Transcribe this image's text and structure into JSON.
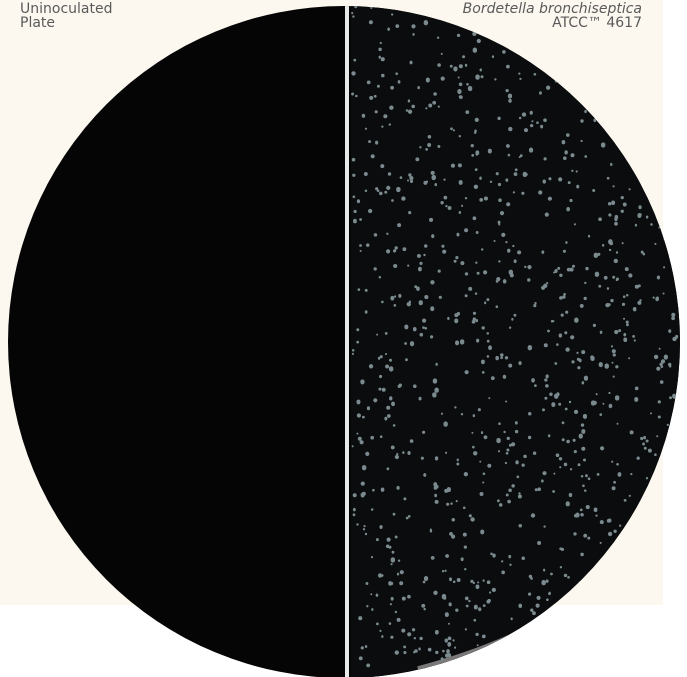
{
  "labels": {
    "left": [
      "Uninoculated",
      "Plate"
    ],
    "right": {
      "organism": "Bordetella bronchiseptica",
      "strain": "ATCC™ 4617"
    }
  }
}
